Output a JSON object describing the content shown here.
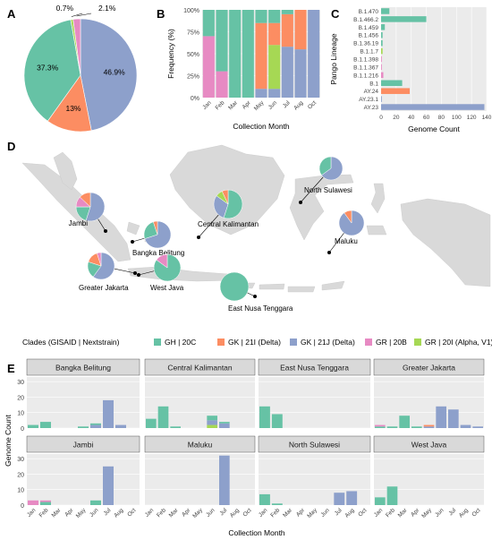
{
  "colors": {
    "GH | 20C": "#66C2A5",
    "GK | 21I (Delta)": "#FC8D62",
    "GK | 21J (Delta)": "#8DA0CB",
    "GR | 20B": "#E78AC3",
    "GR | 20I (Alpha, V1)": "#A6D854",
    "map_land": "#d9d9d9",
    "panel_bg": "#ebebeb",
    "strip_bg": "#d9d9d9"
  },
  "panel_letters": [
    "A",
    "B",
    "C",
    "D",
    "E"
  ],
  "chart_data": [
    {
      "panel": "A",
      "type": "pie",
      "slices": [
        {
          "clade": "GK | 21J (Delta)",
          "value": 46.9,
          "label": "46.9%"
        },
        {
          "clade": "GK | 21I (Delta)",
          "value": 13.0,
          "label": "13%"
        },
        {
          "clade": "GH | 20C",
          "value": 37.3,
          "label": "37.3%"
        },
        {
          "clade": "GR | 20I (Alpha, V1)",
          "value": 0.7,
          "label": "0.7%"
        },
        {
          "clade": "GR | 20B",
          "value": 2.1,
          "label": "2.1%"
        }
      ]
    },
    {
      "panel": "B",
      "type": "bar",
      "stacked": true,
      "xlabel": "Collection Month",
      "ylabel": "Frequency (%)",
      "categories": [
        "Jan",
        "Feb",
        "Mar",
        "Apr",
        "May",
        "Jun",
        "Jul",
        "Aug",
        "Oct"
      ],
      "yticks": [
        "0%",
        "25%",
        "50%",
        "75%",
        "100%"
      ],
      "ylim": [
        0,
        100
      ],
      "series": [
        {
          "name": "GK | 21J (Delta)",
          "values": [
            0,
            0,
            0,
            0,
            10,
            10,
            58,
            55,
            100
          ]
        },
        {
          "name": "GR | 20I (Alpha, V1)",
          "values": [
            0,
            0,
            0,
            0,
            0,
            50,
            0,
            0,
            0
          ]
        },
        {
          "name": "GK | 21I (Delta)",
          "values": [
            0,
            0,
            0,
            0,
            75,
            25,
            37,
            45,
            0
          ]
        },
        {
          "name": "GR | 20B",
          "values": [
            70,
            30,
            0,
            0,
            0,
            0,
            0,
            0,
            0
          ]
        },
        {
          "name": "GH | 20C",
          "values": [
            30,
            70,
            100,
            100,
            15,
            15,
            5,
            0,
            0
          ]
        }
      ]
    },
    {
      "panel": "C",
      "type": "bar",
      "orientation": "horizontal",
      "xlabel": "Genome Count",
      "ylabel": "Pango Lineage",
      "xlim": [
        0,
        140
      ],
      "xticks": [
        "0",
        "20",
        "40",
        "60",
        "80",
        "100",
        "120",
        "140"
      ],
      "categories": [
        "B.1.470",
        "B.1.466.2",
        "B.1.459",
        "B.1.456",
        "B.1.36.19",
        "B.1.1.7",
        "B.1.1.398",
        "B.1.1.367",
        "B.1.1.216",
        "B.1",
        "AY.24",
        "AY.23.1",
        "AY.23"
      ],
      "values": [
        11,
        60,
        5,
        2,
        2,
        2,
        1,
        1,
        3,
        28,
        38,
        1,
        137
      ],
      "bar_clades": [
        "GH | 20C",
        "GH | 20C",
        "GH | 20C",
        "GH | 20C",
        "GH | 20C",
        "GR | 20I (Alpha, V1)",
        "GR | 20B",
        "GR | 20B",
        "GR | 20B",
        "GH | 20C",
        "GK | 21I (Delta)",
        "GK | 21J (Delta)",
        "GK | 21J (Delta)"
      ]
    },
    {
      "panel": "D",
      "type": "map",
      "regions": [
        {
          "name": "Jambi",
          "pie": [
            {
              "clade": "GK | 21J (Delta)",
              "value": 55
            },
            {
              "clade": "GH | 20C",
              "value": 20
            },
            {
              "clade": "GR | 20B",
              "value": 12
            },
            {
              "clade": "GK | 21I (Delta)",
              "value": 13
            }
          ]
        },
        {
          "name": "Bangka Belitung",
          "pie": [
            {
              "clade": "GK | 21J (Delta)",
              "value": 70
            },
            {
              "clade": "GH | 20C",
              "value": 25
            },
            {
              "clade": "GK | 21I (Delta)",
              "value": 5
            }
          ]
        },
        {
          "name": "Central Kalimantan",
          "pie": [
            {
              "clade": "GH | 20C",
              "value": 55
            },
            {
              "clade": "GK | 21J (Delta)",
              "value": 30
            },
            {
              "clade": "GR | 20I (Alpha, V1)",
              "value": 8
            },
            {
              "clade": "GK | 21I (Delta)",
              "value": 7
            }
          ]
        },
        {
          "name": "North Sulawesi",
          "pie": [
            {
              "clade": "GK | 21J (Delta)",
              "value": 65
            },
            {
              "clade": "GH | 20C",
              "value": 35
            }
          ]
        },
        {
          "name": "Maluku",
          "pie": [
            {
              "clade": "GK | 21J (Delta)",
              "value": 90
            },
            {
              "clade": "GK | 21I (Delta)",
              "value": 10
            }
          ]
        },
        {
          "name": "Greater Jakarta",
          "pie": [
            {
              "clade": "GK | 21J (Delta)",
              "value": 60
            },
            {
              "clade": "GH | 20C",
              "value": 20
            },
            {
              "clade": "GK | 21I (Delta)",
              "value": 15
            },
            {
              "clade": "GR | 20B",
              "value": 5
            }
          ]
        },
        {
          "name": "West Java",
          "pie": [
            {
              "clade": "GH | 20C",
              "value": 85
            },
            {
              "clade": "GR | 20B",
              "value": 15
            }
          ]
        },
        {
          "name": "East Nusa Tenggara",
          "pie": [
            {
              "clade": "GH | 20C",
              "value": 100
            }
          ]
        }
      ]
    },
    {
      "panel": "E",
      "type": "bar",
      "faceted": true,
      "xlabel": "Collection Month",
      "ylabel": "Genome Count",
      "categories": [
        "Jan",
        "Feb",
        "Mar",
        "Apr",
        "May",
        "Jun",
        "Jul",
        "Aug",
        "Oct"
      ],
      "yticks": [
        "0",
        "10",
        "20",
        "30"
      ],
      "ylim": [
        0,
        33
      ],
      "facets": [
        {
          "name": "Bangka Belitung",
          "bars": [
            {
              "month": "Jan",
              "stack": [
                {
                  "clade": "GH | 20C",
                  "value": 2
                }
              ]
            },
            {
              "month": "Feb",
              "stack": [
                {
                  "clade": "GH | 20C",
                  "value": 4
                }
              ]
            },
            {
              "month": "May",
              "stack": [
                {
                  "clade": "GH | 20C",
                  "value": 1
                }
              ]
            },
            {
              "month": "Jun",
              "stack": [
                {
                  "clade": "GK | 21J (Delta)",
                  "value": 2
                },
                {
                  "clade": "GH | 20C",
                  "value": 1
                }
              ]
            },
            {
              "month": "Jul",
              "stack": [
                {
                  "clade": "GK | 21J (Delta)",
                  "value": 18
                }
              ]
            },
            {
              "month": "Aug",
              "stack": [
                {
                  "clade": "GK | 21J (Delta)",
                  "value": 2
                }
              ]
            }
          ]
        },
        {
          "name": "Central Kalimantan",
          "bars": [
            {
              "month": "Jan",
              "stack": [
                {
                  "clade": "GH | 20C",
                  "value": 6
                }
              ]
            },
            {
              "month": "Feb",
              "stack": [
                {
                  "clade": "GH | 20C",
                  "value": 14
                }
              ]
            },
            {
              "month": "Mar",
              "stack": [
                {
                  "clade": "GH | 20C",
                  "value": 1
                }
              ]
            },
            {
              "month": "Jun",
              "stack": [
                {
                  "clade": "GR | 20I (Alpha, V1)",
                  "value": 2
                },
                {
                  "clade": "GK | 21J (Delta)",
                  "value": 3
                },
                {
                  "clade": "GH | 20C",
                  "value": 3
                }
              ]
            },
            {
              "month": "Jul",
              "stack": [
                {
                  "clade": "GK | 21J (Delta)",
                  "value": 3
                },
                {
                  "clade": "GH | 20C",
                  "value": 1
                }
              ]
            }
          ]
        },
        {
          "name": "East Nusa Tenggara",
          "bars": [
            {
              "month": "Jan",
              "stack": [
                {
                  "clade": "GH | 20C",
                  "value": 14
                }
              ]
            },
            {
              "month": "Feb",
              "stack": [
                {
                  "clade": "GH | 20C",
                  "value": 9
                }
              ]
            }
          ]
        },
        {
          "name": "Greater Jakarta",
          "bars": [
            {
              "month": "Jan",
              "stack": [
                {
                  "clade": "GH | 20C",
                  "value": 1
                },
                {
                  "clade": "GR | 20B",
                  "value": 1
                }
              ]
            },
            {
              "month": "Feb",
              "stack": [
                {
                  "clade": "GH | 20C",
                  "value": 1
                }
              ]
            },
            {
              "month": "Mar",
              "stack": [
                {
                  "clade": "GH | 20C",
                  "value": 8
                }
              ]
            },
            {
              "month": "Apr",
              "stack": [
                {
                  "clade": "GH | 20C",
                  "value": 1
                }
              ]
            },
            {
              "month": "May",
              "stack": [
                {
                  "clade": "GK | 21J (Delta)",
                  "value": 1
                },
                {
                  "clade": "GK | 21I (Delta)",
                  "value": 1
                }
              ]
            },
            {
              "month": "Jun",
              "stack": [
                {
                  "clade": "GK | 21J (Delta)",
                  "value": 14
                }
              ]
            },
            {
              "month": "Jul",
              "stack": [
                {
                  "clade": "GK | 21J (Delta)",
                  "value": 12
                }
              ]
            },
            {
              "month": "Aug",
              "stack": [
                {
                  "clade": "GK | 21J (Delta)",
                  "value": 2
                }
              ]
            },
            {
              "month": "Oct",
              "stack": [
                {
                  "clade": "GK | 21J (Delta)",
                  "value": 1
                }
              ]
            }
          ]
        },
        {
          "name": "Jambi",
          "bars": [
            {
              "month": "Jan",
              "stack": [
                {
                  "clade": "GR | 20B",
                  "value": 3
                }
              ]
            },
            {
              "month": "Feb",
              "stack": [
                {
                  "clade": "GH | 20C",
                  "value": 2
                },
                {
                  "clade": "GR | 20B",
                  "value": 1
                }
              ]
            },
            {
              "month": "Jun",
              "stack": [
                {
                  "clade": "GH | 20C",
                  "value": 3
                }
              ]
            },
            {
              "month": "Jul",
              "stack": [
                {
                  "clade": "GK | 21J (Delta)",
                  "value": 25
                }
              ]
            }
          ]
        },
        {
          "name": "Maluku",
          "bars": [
            {
              "month": "Jul",
              "stack": [
                {
                  "clade": "GK | 21J (Delta)",
                  "value": 32
                }
              ]
            }
          ]
        },
        {
          "name": "North Sulawesi",
          "bars": [
            {
              "month": "Jan",
              "stack": [
                {
                  "clade": "GH | 20C",
                  "value": 7
                }
              ]
            },
            {
              "month": "Feb",
              "stack": [
                {
                  "clade": "GH | 20C",
                  "value": 1
                }
              ]
            },
            {
              "month": "Jul",
              "stack": [
                {
                  "clade": "GK | 21J (Delta)",
                  "value": 8
                }
              ]
            },
            {
              "month": "Aug",
              "stack": [
                {
                  "clade": "GK | 21J (Delta)",
                  "value": 9
                }
              ]
            }
          ]
        },
        {
          "name": "West Java",
          "bars": [
            {
              "month": "Jan",
              "stack": [
                {
                  "clade": "GH | 20C",
                  "value": 5
                }
              ]
            },
            {
              "month": "Feb",
              "stack": [
                {
                  "clade": "GH | 20C",
                  "value": 12
                }
              ]
            }
          ]
        }
      ]
    }
  ],
  "legend": {
    "title": "Clades (GISAID | Nextstrain)",
    "items": [
      "GH | 20C",
      "GK | 21I (Delta)",
      "GK | 21J (Delta)",
      "GR | 20B",
      "GR | 20I (Alpha, V1)"
    ]
  }
}
